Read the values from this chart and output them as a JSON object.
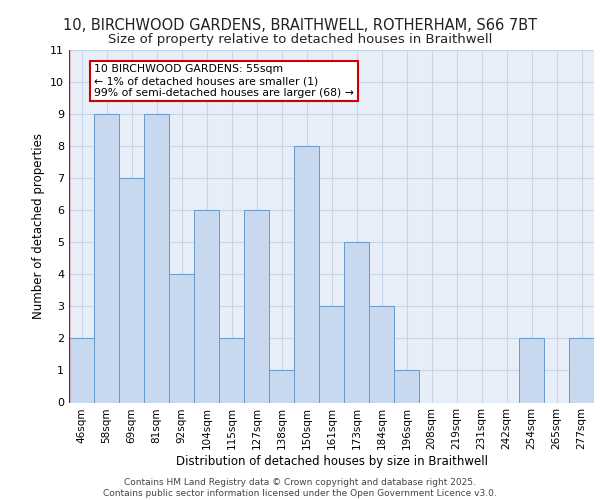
{
  "title_line1": "10, BIRCHWOOD GARDENS, BRAITHWELL, ROTHERHAM, S66 7BT",
  "title_line2": "Size of property relative to detached houses in Braithwell",
  "xlabel": "Distribution of detached houses by size in Braithwell",
  "ylabel": "Number of detached properties",
  "bin_labels": [
    "46sqm",
    "58sqm",
    "69sqm",
    "81sqm",
    "92sqm",
    "104sqm",
    "115sqm",
    "127sqm",
    "138sqm",
    "150sqm",
    "161sqm",
    "173sqm",
    "184sqm",
    "196sqm",
    "208sqm",
    "219sqm",
    "231sqm",
    "242sqm",
    "254sqm",
    "265sqm",
    "277sqm"
  ],
  "values": [
    2,
    9,
    7,
    9,
    4,
    6,
    2,
    6,
    1,
    8,
    3,
    5,
    3,
    1,
    0,
    0,
    0,
    0,
    2,
    0,
    2
  ],
  "bar_color": "#c8d9ef",
  "bar_edge_color": "#6699cc",
  "annotation_text": "10 BIRCHWOOD GARDENS: 55sqm\n← 1% of detached houses are smaller (1)\n99% of semi-detached houses are larger (68) →",
  "annotation_box_color": "#ffffff",
  "annotation_box_edge_color": "#cc0000",
  "ylim": [
    0,
    11
  ],
  "yticks": [
    0,
    1,
    2,
    3,
    4,
    5,
    6,
    7,
    8,
    9,
    10,
    11
  ],
  "grid_color": "#c8d4e8",
  "background_color": "#e8eef8",
  "footer_text": "Contains HM Land Registry data © Crown copyright and database right 2025.\nContains public sector information licensed under the Open Government Licence v3.0.",
  "title_fontsize": 10.5,
  "subtitle_fontsize": 9.5,
  "label_fontsize": 8.5,
  "tick_fontsize": 7.5,
  "footer_fontsize": 6.5,
  "annotation_fontsize": 7.8
}
